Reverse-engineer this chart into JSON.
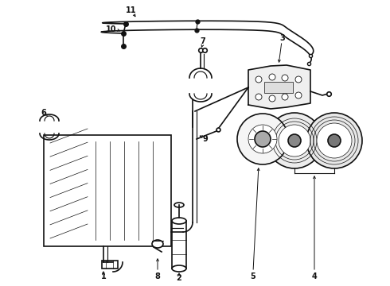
{
  "bg_color": "#ffffff",
  "line_color": "#111111",
  "fig_width": 4.9,
  "fig_height": 3.6,
  "dpi": 100
}
